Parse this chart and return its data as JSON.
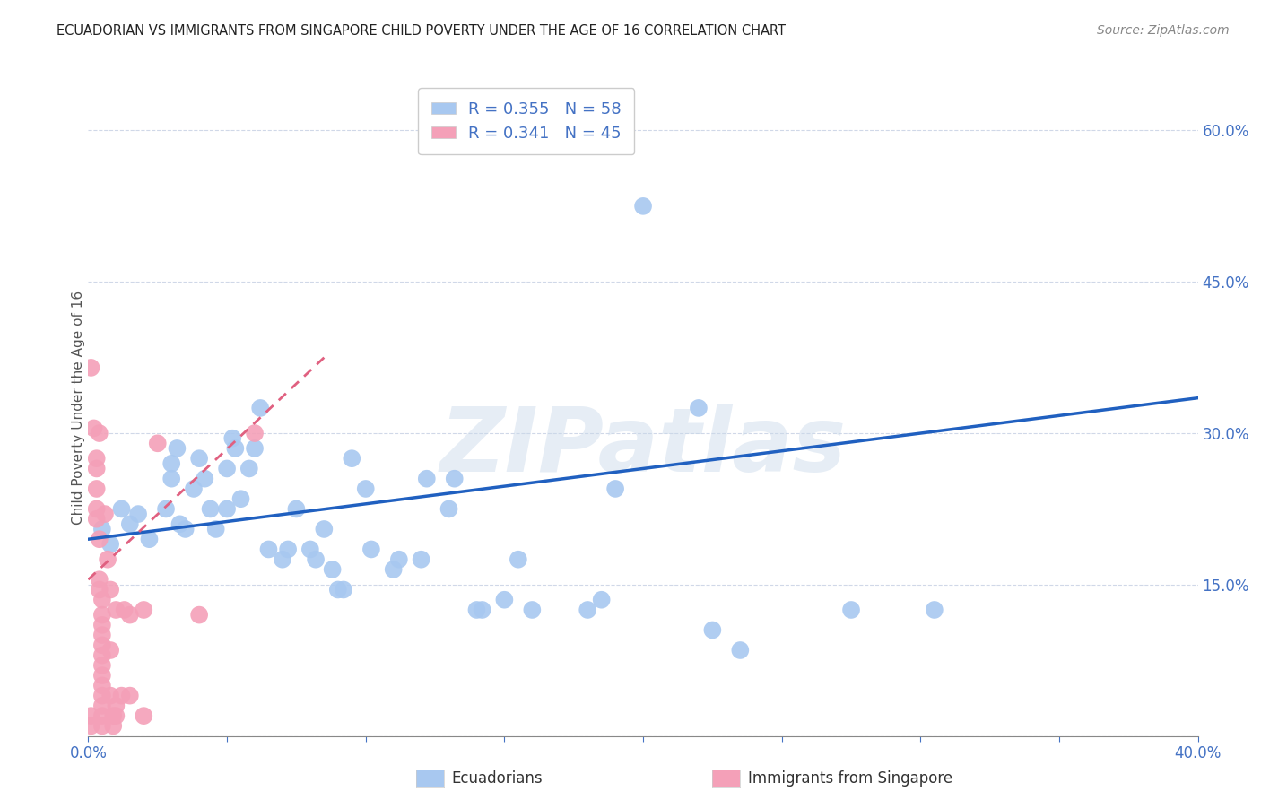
{
  "title": "ECUADORIAN VS IMMIGRANTS FROM SINGAPORE CHILD POVERTY UNDER THE AGE OF 16 CORRELATION CHART",
  "source": "Source: ZipAtlas.com",
  "ylabel": "Child Poverty Under the Age of 16",
  "xlabel_blue": "Ecuadorians",
  "xlabel_pink": "Immigrants from Singapore",
  "xlim": [
    0.0,
    0.4
  ],
  "ylim": [
    0.0,
    0.65
  ],
  "yticks": [
    0.0,
    0.15,
    0.3,
    0.45,
    0.6
  ],
  "ytick_labels_right": [
    "",
    "15.0%",
    "30.0%",
    "45.0%",
    "60.0%"
  ],
  "xticks": [
    0.0,
    0.05,
    0.1,
    0.15,
    0.2,
    0.25,
    0.3,
    0.35,
    0.4
  ],
  "xtick_labels": [
    "0.0%",
    "",
    "",
    "",
    "",
    "",
    "",
    "",
    "40.0%"
  ],
  "blue_R": 0.355,
  "blue_N": 58,
  "pink_R": 0.341,
  "pink_N": 45,
  "blue_color": "#a8c8f0",
  "pink_color": "#f4a0b8",
  "blue_line_color": "#2060c0",
  "pink_line_color": "#e06080",
  "blue_scatter": [
    [
      0.005,
      0.205
    ],
    [
      0.008,
      0.19
    ],
    [
      0.012,
      0.225
    ],
    [
      0.015,
      0.21
    ],
    [
      0.018,
      0.22
    ],
    [
      0.022,
      0.195
    ],
    [
      0.028,
      0.225
    ],
    [
      0.03,
      0.255
    ],
    [
      0.03,
      0.27
    ],
    [
      0.032,
      0.285
    ],
    [
      0.033,
      0.21
    ],
    [
      0.035,
      0.205
    ],
    [
      0.038,
      0.245
    ],
    [
      0.04,
      0.275
    ],
    [
      0.042,
      0.255
    ],
    [
      0.044,
      0.225
    ],
    [
      0.046,
      0.205
    ],
    [
      0.05,
      0.225
    ],
    [
      0.05,
      0.265
    ],
    [
      0.052,
      0.295
    ],
    [
      0.053,
      0.285
    ],
    [
      0.055,
      0.235
    ],
    [
      0.058,
      0.265
    ],
    [
      0.06,
      0.285
    ],
    [
      0.062,
      0.325
    ],
    [
      0.065,
      0.185
    ],
    [
      0.07,
      0.175
    ],
    [
      0.072,
      0.185
    ],
    [
      0.075,
      0.225
    ],
    [
      0.08,
      0.185
    ],
    [
      0.082,
      0.175
    ],
    [
      0.085,
      0.205
    ],
    [
      0.088,
      0.165
    ],
    [
      0.09,
      0.145
    ],
    [
      0.092,
      0.145
    ],
    [
      0.095,
      0.275
    ],
    [
      0.1,
      0.245
    ],
    [
      0.102,
      0.185
    ],
    [
      0.11,
      0.165
    ],
    [
      0.112,
      0.175
    ],
    [
      0.12,
      0.175
    ],
    [
      0.122,
      0.255
    ],
    [
      0.13,
      0.225
    ],
    [
      0.132,
      0.255
    ],
    [
      0.14,
      0.125
    ],
    [
      0.142,
      0.125
    ],
    [
      0.15,
      0.135
    ],
    [
      0.155,
      0.175
    ],
    [
      0.16,
      0.125
    ],
    [
      0.18,
      0.125
    ],
    [
      0.185,
      0.135
    ],
    [
      0.19,
      0.245
    ],
    [
      0.2,
      0.525
    ],
    [
      0.22,
      0.325
    ],
    [
      0.225,
      0.105
    ],
    [
      0.235,
      0.085
    ],
    [
      0.275,
      0.125
    ],
    [
      0.305,
      0.125
    ]
  ],
  "pink_scatter": [
    [
      0.001,
      0.365
    ],
    [
      0.002,
      0.305
    ],
    [
      0.003,
      0.275
    ],
    [
      0.003,
      0.265
    ],
    [
      0.003,
      0.245
    ],
    [
      0.003,
      0.225
    ],
    [
      0.003,
      0.215
    ],
    [
      0.004,
      0.3
    ],
    [
      0.004,
      0.195
    ],
    [
      0.004,
      0.155
    ],
    [
      0.004,
      0.145
    ],
    [
      0.005,
      0.135
    ],
    [
      0.005,
      0.12
    ],
    [
      0.005,
      0.11
    ],
    [
      0.005,
      0.1
    ],
    [
      0.005,
      0.09
    ],
    [
      0.005,
      0.08
    ],
    [
      0.005,
      0.07
    ],
    [
      0.005,
      0.06
    ],
    [
      0.005,
      0.05
    ],
    [
      0.005,
      0.04
    ],
    [
      0.005,
      0.03
    ],
    [
      0.005,
      0.02
    ],
    [
      0.005,
      0.01
    ],
    [
      0.006,
      0.22
    ],
    [
      0.007,
      0.175
    ],
    [
      0.008,
      0.145
    ],
    [
      0.008,
      0.085
    ],
    [
      0.008,
      0.04
    ],
    [
      0.009,
      0.02
    ],
    [
      0.009,
      0.01
    ],
    [
      0.01,
      0.125
    ],
    [
      0.01,
      0.02
    ],
    [
      0.01,
      0.03
    ],
    [
      0.012,
      0.04
    ],
    [
      0.013,
      0.125
    ],
    [
      0.015,
      0.04
    ],
    [
      0.015,
      0.12
    ],
    [
      0.02,
      0.02
    ],
    [
      0.02,
      0.125
    ],
    [
      0.025,
      0.29
    ],
    [
      0.04,
      0.12
    ],
    [
      0.06,
      0.3
    ],
    [
      0.001,
      0.01
    ],
    [
      0.001,
      0.02
    ]
  ],
  "blue_line_x": [
    0.0,
    0.4
  ],
  "blue_line_y": [
    0.195,
    0.335
  ],
  "pink_line_x": [
    0.0,
    0.085
  ],
  "pink_line_y": [
    0.155,
    0.375
  ],
  "watermark": "ZIPatlas",
  "background_color": "#ffffff",
  "grid_color": "#d0d8e8"
}
